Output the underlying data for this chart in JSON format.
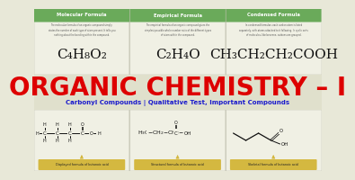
{
  "bg_color": "#e8e8d8",
  "panel_bg": "#f0f0e4",
  "title_text": "ORGANIC CHEMISTRY – I",
  "title_color": "#dd0000",
  "subtitle_text": "Carbonyl Compounds | Qualitative Test, Important Compounds",
  "subtitle_color": "#1a1acc",
  "header_bg": "#6aaa5a",
  "header_texts": [
    "Molecular Formula",
    "Empirical Formula",
    "Condensed Formula"
  ],
  "formula_texts": [
    "C₄H₈O₂",
    "C₂H₄O",
    "CH₃CH₂CH₂COOH"
  ],
  "caption_bg": "#d4b840",
  "caption_texts": [
    "Displayed formula of butanoic acid",
    "Structural formula of butanoic acid",
    "Skeletal formula of butanoic acid"
  ],
  "desc_texts": [
    [
      "The molecular formula of an organic compound simply",
      "states the number of each type of atom present. It tells you",
      "nothing about the bonding within the compound."
    ],
    [
      "The empirical formula of an organic compound gives the",
      "simplest possible whole number ratio of the different types",
      "of atom within the compound."
    ],
    [
      "In condensed formulae, each carbon atom is listed",
      "separately, with atoms attached to it following. In cyclic sorts",
      "of molecules, like benzene, carbons are grouped."
    ]
  ],
  "panel_border": "#bbbbaa",
  "atom_color": "#111111",
  "oxygen_color": "#111111"
}
